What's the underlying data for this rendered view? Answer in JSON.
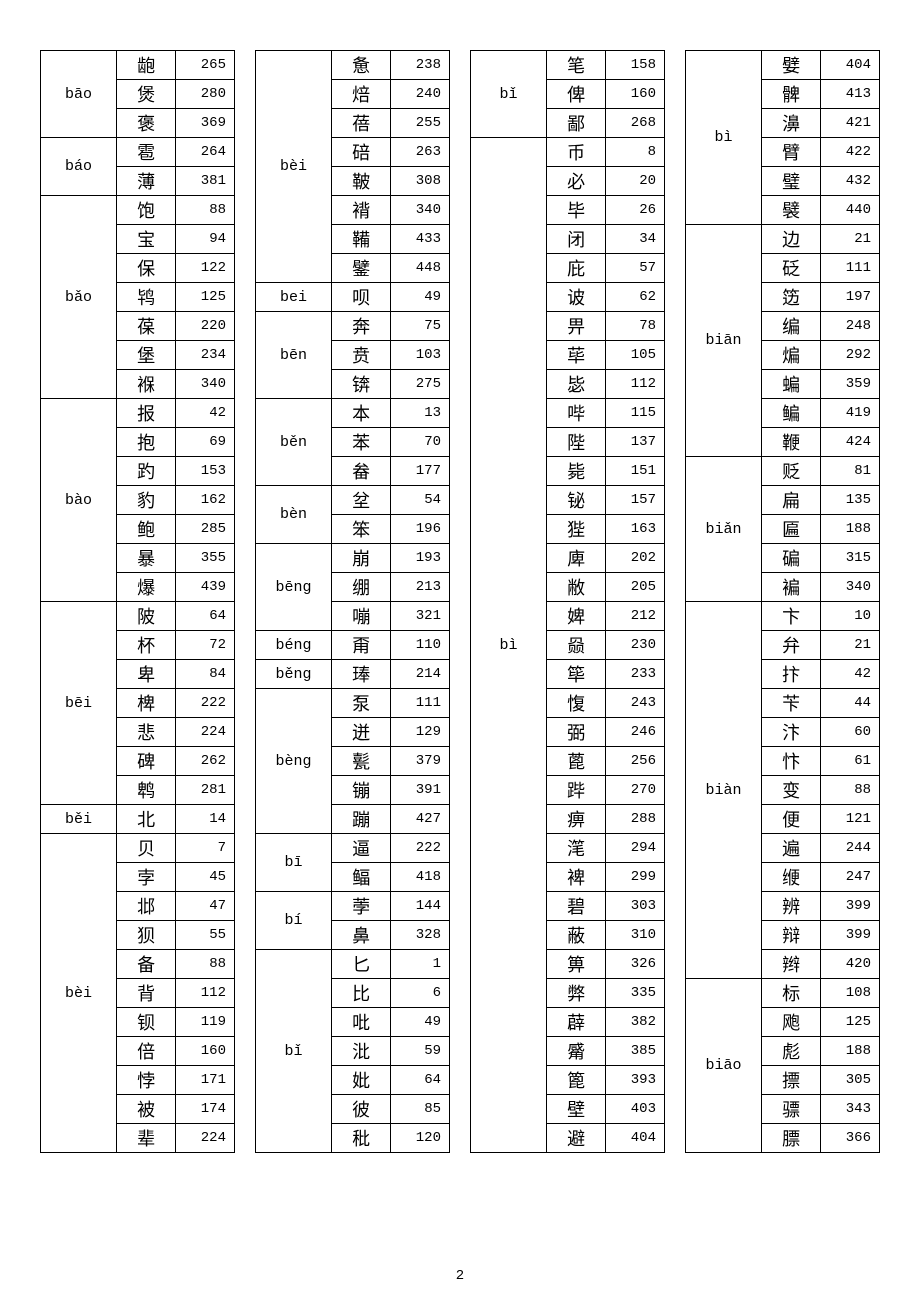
{
  "page_number": "2",
  "columns": [
    {
      "groups": [
        {
          "pinyin": "bāo",
          "rows": [
            [
              "龅",
              "265"
            ],
            [
              "煲",
              "280"
            ],
            [
              "褒",
              "369"
            ]
          ]
        },
        {
          "pinyin": "báo",
          "rows": [
            [
              "雹",
              "264"
            ],
            [
              "薄",
              "381"
            ]
          ]
        },
        {
          "pinyin": "bǎo",
          "rows": [
            [
              "饱",
              "88"
            ],
            [
              "宝",
              "94"
            ],
            [
              "保",
              "122"
            ],
            [
              "鸨",
              "125"
            ],
            [
              "葆",
              "220"
            ],
            [
              "堡",
              "234"
            ],
            [
              "褓",
              "340"
            ]
          ]
        },
        {
          "pinyin": "bào",
          "rows": [
            [
              "报",
              "42"
            ],
            [
              "抱",
              "69"
            ],
            [
              "趵",
              "153"
            ],
            [
              "豹",
              "162"
            ],
            [
              "鲍",
              "285"
            ],
            [
              "暴",
              "355"
            ],
            [
              "爆",
              "439"
            ]
          ]
        },
        {
          "pinyin": "bēi",
          "rows": [
            [
              "陂",
              "64"
            ],
            [
              "杯",
              "72"
            ],
            [
              "卑",
              "84"
            ],
            [
              "椑",
              "222"
            ],
            [
              "悲",
              "224"
            ],
            [
              "碑",
              "262"
            ],
            [
              "鹎",
              "281"
            ]
          ]
        },
        {
          "pinyin": "běi",
          "rows": [
            [
              "北",
              "14"
            ]
          ]
        },
        {
          "pinyin": "bèi",
          "rows": [
            [
              "贝",
              "7"
            ],
            [
              "孛",
              "45"
            ],
            [
              "邶",
              "47"
            ],
            [
              "狈",
              "55"
            ],
            [
              "备",
              "88"
            ],
            [
              "背",
              "112"
            ],
            [
              "钡",
              "119"
            ],
            [
              "倍",
              "160"
            ],
            [
              "悖",
              "171"
            ],
            [
              "被",
              "174"
            ],
            [
              "辈",
              "224"
            ]
          ]
        }
      ]
    },
    {
      "groups": [
        {
          "pinyin": "bèi",
          "rows": [
            [
              "惫",
              "238"
            ],
            [
              "焙",
              "240"
            ],
            [
              "蓓",
              "255"
            ],
            [
              "碚",
              "263"
            ],
            [
              "鞁",
              "308"
            ],
            [
              "褙",
              "340"
            ],
            [
              "鞴",
              "433"
            ],
            [
              "鐾",
              "448"
            ]
          ]
        },
        {
          "pinyin": "bei",
          "rows": [
            [
              "呗",
              "49"
            ]
          ]
        },
        {
          "pinyin": "bēn",
          "rows": [
            [
              "奔",
              "75"
            ],
            [
              "贲",
              "103"
            ],
            [
              "锛",
              "275"
            ]
          ]
        },
        {
          "pinyin": "běn",
          "rows": [
            [
              "本",
              "13"
            ],
            [
              "苯",
              "70"
            ],
            [
              "畚",
              "177"
            ]
          ]
        },
        {
          "pinyin": "bèn",
          "rows": [
            [
              "坌",
              "54"
            ],
            [
              "笨",
              "196"
            ]
          ]
        },
        {
          "pinyin": "bēng",
          "rows": [
            [
              "崩",
              "193"
            ],
            [
              "绷",
              "213"
            ],
            [
              "嘣",
              "321"
            ]
          ]
        },
        {
          "pinyin": "béng",
          "rows": [
            [
              "甭",
              "110"
            ]
          ]
        },
        {
          "pinyin": "běng",
          "rows": [
            [
              "琫",
              "214"
            ]
          ]
        },
        {
          "pinyin": "bèng",
          "rows": [
            [
              "泵",
              "111"
            ],
            [
              "迸",
              "129"
            ],
            [
              "甏",
              "379"
            ],
            [
              "镚",
              "391"
            ],
            [
              "蹦",
              "427"
            ]
          ]
        },
        {
          "pinyin": "bī",
          "rows": [
            [
              "逼",
              "222"
            ],
            [
              "鲾",
              "418"
            ]
          ]
        },
        {
          "pinyin": "bí",
          "rows": [
            [
              "荸",
              "144"
            ],
            [
              "鼻",
              "328"
            ]
          ]
        },
        {
          "pinyin": "bǐ",
          "rows": [
            [
              "匕",
              "1"
            ],
            [
              "比",
              "6"
            ],
            [
              "吡",
              "49"
            ],
            [
              "沘",
              "59"
            ],
            [
              "妣",
              "64"
            ],
            [
              "彼",
              "85"
            ],
            [
              "秕",
              "120"
            ]
          ]
        }
      ]
    },
    {
      "groups": [
        {
          "pinyin": "bǐ",
          "rows": [
            [
              "笔",
              "158"
            ],
            [
              "俾",
              "160"
            ],
            [
              "鄙",
              "268"
            ]
          ]
        },
        {
          "pinyin": "bì",
          "rows": [
            [
              "币",
              "8"
            ],
            [
              "必",
              "20"
            ],
            [
              "毕",
              "26"
            ],
            [
              "闭",
              "34"
            ],
            [
              "庇",
              "57"
            ],
            [
              "诐",
              "62"
            ],
            [
              "畀",
              "78"
            ],
            [
              "荜",
              "105"
            ],
            [
              "毖",
              "112"
            ],
            [
              "哔",
              "115"
            ],
            [
              "陛",
              "137"
            ],
            [
              "毙",
              "151"
            ],
            [
              "铋",
              "157"
            ],
            [
              "狴",
              "163"
            ],
            [
              "庳",
              "202"
            ],
            [
              "敝",
              "205"
            ],
            [
              "婢",
              "212"
            ],
            [
              "赑",
              "230"
            ],
            [
              "筚",
              "233"
            ],
            [
              "愎",
              "243"
            ],
            [
              "弼",
              "246"
            ],
            [
              "蓖",
              "256"
            ],
            [
              "跸",
              "270"
            ],
            [
              "痹",
              "288"
            ],
            [
              "滗",
              "294"
            ],
            [
              "裨",
              "299"
            ],
            [
              "碧",
              "303"
            ],
            [
              "蔽",
              "310"
            ],
            [
              "箅",
              "326"
            ],
            [
              "弊",
              "335"
            ],
            [
              "薜",
              "382"
            ],
            [
              "觱",
              "385"
            ],
            [
              "篦",
              "393"
            ],
            [
              "壁",
              "403"
            ],
            [
              "避",
              "404"
            ]
          ]
        }
      ]
    },
    {
      "groups": [
        {
          "pinyin": "bì",
          "rows": [
            [
              "嬖",
              "404"
            ],
            [
              "髀",
              "413"
            ],
            [
              "濞",
              "421"
            ],
            [
              "臂",
              "422"
            ],
            [
              "璧",
              "432"
            ],
            [
              "襞",
              "440"
            ]
          ]
        },
        {
          "pinyin": "biān",
          "rows": [
            [
              "边",
              "21"
            ],
            [
              "砭",
              "111"
            ],
            [
              "笾",
              "197"
            ],
            [
              "编",
              "248"
            ],
            [
              "煸",
              "292"
            ],
            [
              "蝙",
              "359"
            ],
            [
              "鳊",
              "419"
            ],
            [
              "鞭",
              "424"
            ]
          ]
        },
        {
          "pinyin": "biǎn",
          "rows": [
            [
              "贬",
              "81"
            ],
            [
              "扁",
              "135"
            ],
            [
              "匾",
              "188"
            ],
            [
              "碥",
              "315"
            ],
            [
              "褊",
              "340"
            ]
          ]
        },
        {
          "pinyin": "biàn",
          "rows": [
            [
              "卞",
              "10"
            ],
            [
              "弁",
              "21"
            ],
            [
              "抃",
              "42"
            ],
            [
              "苄",
              "44"
            ],
            [
              "汴",
              "60"
            ],
            [
              "忭",
              "61"
            ],
            [
              "变",
              "88"
            ],
            [
              "便",
              "121"
            ],
            [
              "遍",
              "244"
            ],
            [
              "缏",
              "247"
            ],
            [
              "辨",
              "399"
            ],
            [
              "辩",
              "399"
            ],
            [
              "辫",
              "420"
            ]
          ]
        },
        {
          "pinyin": "biāo",
          "rows": [
            [
              "标",
              "108"
            ],
            [
              "飑",
              "125"
            ],
            [
              "彪",
              "188"
            ],
            [
              "摽",
              "305"
            ],
            [
              "骠",
              "343"
            ],
            [
              "膘",
              "366"
            ]
          ]
        }
      ]
    }
  ]
}
